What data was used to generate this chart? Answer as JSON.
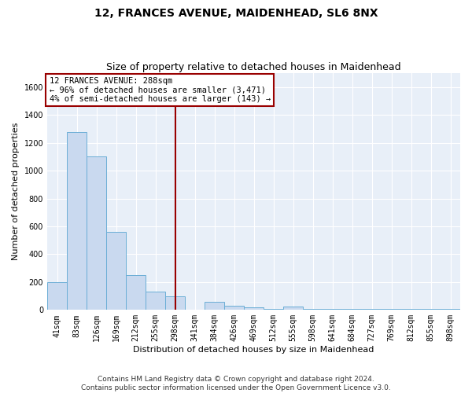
{
  "title1": "12, FRANCES AVENUE, MAIDENHEAD, SL6 8NX",
  "title2": "Size of property relative to detached houses in Maidenhead",
  "xlabel": "Distribution of detached houses by size in Maidenhead",
  "ylabel": "Number of detached properties",
  "categories": [
    "41sqm",
    "83sqm",
    "126sqm",
    "169sqm",
    "212sqm",
    "255sqm",
    "298sqm",
    "341sqm",
    "384sqm",
    "426sqm",
    "469sqm",
    "512sqm",
    "555sqm",
    "598sqm",
    "641sqm",
    "684sqm",
    "727sqm",
    "769sqm",
    "812sqm",
    "855sqm",
    "898sqm"
  ],
  "values": [
    200,
    1280,
    1100,
    560,
    250,
    130,
    100,
    0,
    60,
    30,
    20,
    10,
    25,
    10,
    5,
    5,
    5,
    5,
    5,
    5,
    10
  ],
  "bar_color": "#c9d9ef",
  "bar_edge_color": "#6baed6",
  "vline_x_index": 6,
  "vline_color": "#990000",
  "annotation_title": "12 FRANCES AVENUE: 288sqm",
  "annotation_line1": "← 96% of detached houses are smaller (3,471)",
  "annotation_line2": "4% of semi-detached houses are larger (143) →",
  "annotation_box_color": "#990000",
  "footnote1": "Contains HM Land Registry data © Crown copyright and database right 2024.",
  "footnote2": "Contains public sector information licensed under the Open Government Licence v3.0.",
  "ylim": [
    0,
    1700
  ],
  "yticks": [
    0,
    200,
    400,
    600,
    800,
    1000,
    1200,
    1400,
    1600
  ],
  "bg_color": "#e8eff8",
  "grid_color": "#ffffff",
  "title1_fontsize": 10,
  "title2_fontsize": 9,
  "axis_label_fontsize": 8,
  "tick_fontsize": 7,
  "annotation_fontsize": 7.5,
  "footnote_fontsize": 6.5
}
